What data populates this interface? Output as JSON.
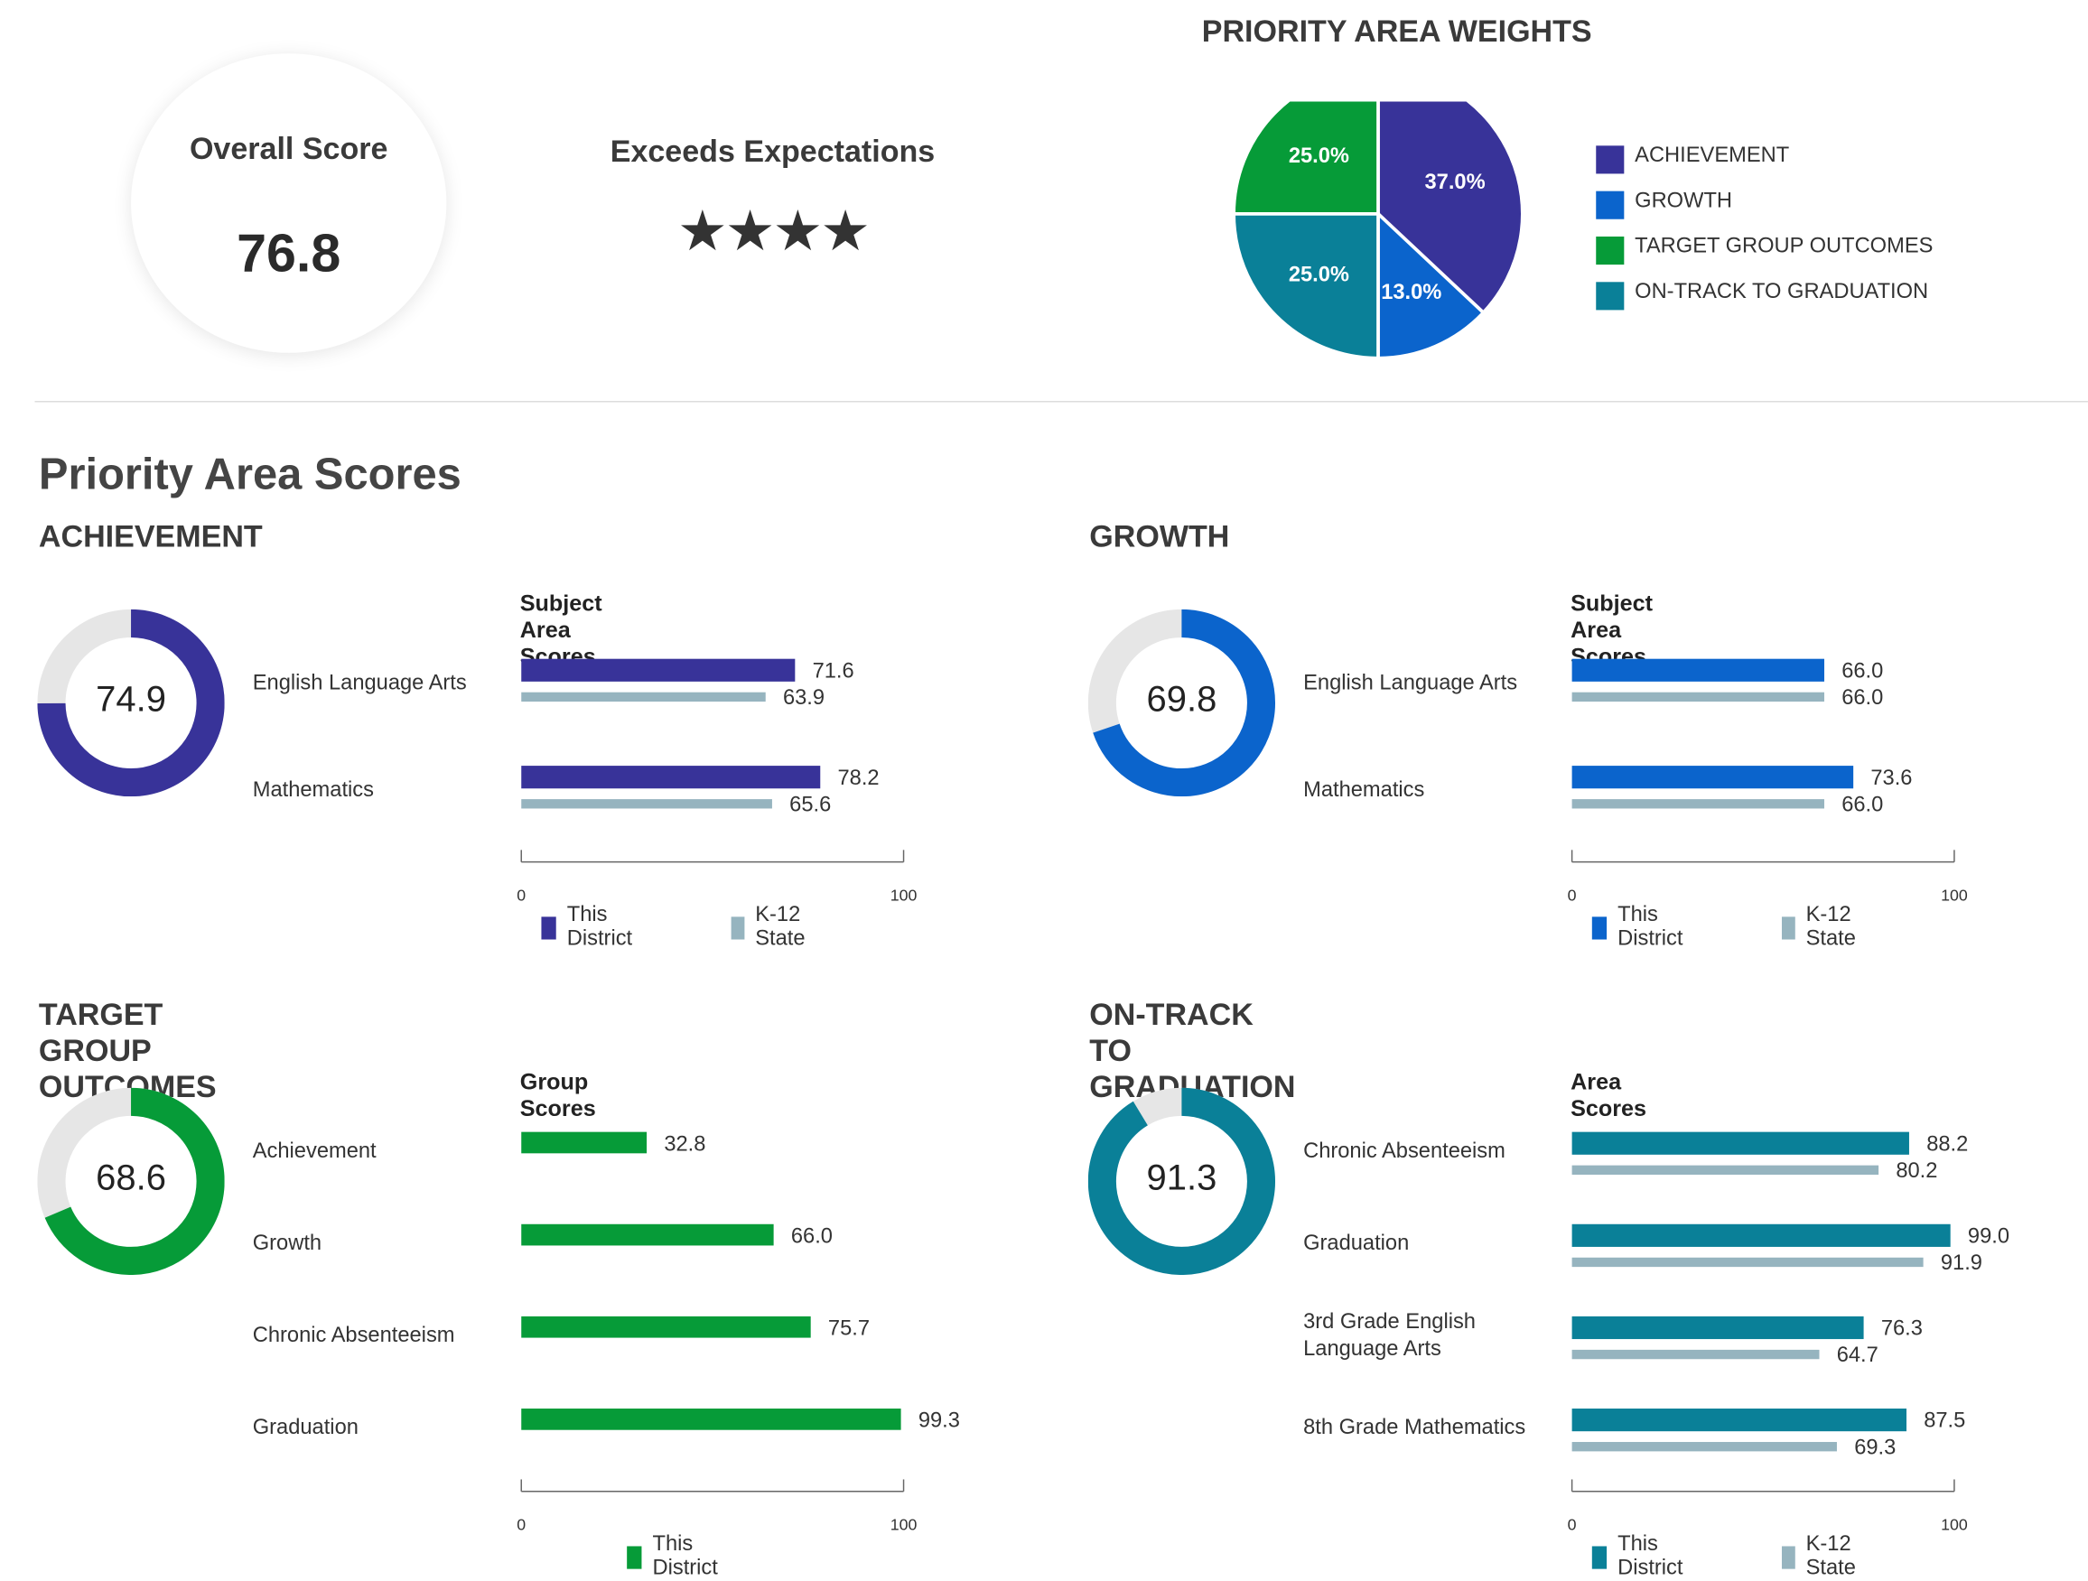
{
  "overall": {
    "title": "Overall Score",
    "value": "76.8"
  },
  "rating": {
    "label": "Exceeds Expectations",
    "stars": "★★★★"
  },
  "weights": {
    "title": "PRIORITY AREA WEIGHTS",
    "slices": [
      {
        "label": "ACHIEVEMENT",
        "value": 37.0,
        "color": "#383399",
        "display": "37.0%"
      },
      {
        "label": "GROWTH",
        "value": 13.0,
        "color": "#0b64cc",
        "display": "13.0%"
      },
      {
        "label": "ON-TRACK TO GRADUATION",
        "value": 25.0,
        "color": "#0a8098",
        "display": "25.0%"
      },
      {
        "label": "TARGET GROUP OUTCOMES",
        "value": 25.0,
        "color": "#069b38",
        "display": "25.0%"
      }
    ],
    "legend": [
      {
        "label": "ACHIEVEMENT",
        "color": "#383399"
      },
      {
        "label": "GROWTH",
        "color": "#0b64cc"
      },
      {
        "label": "TARGET GROUP OUTCOMES",
        "color": "#069b38"
      },
      {
        "label": "ON-TRACK TO GRADUATION",
        "color": "#0a8098"
      }
    ]
  },
  "section_title": "Priority Area Scores",
  "state_color": "#96b4bf",
  "axis": {
    "min": 0,
    "max": 100,
    "min_label": "0",
    "max_label": "100"
  },
  "panels": [
    {
      "title": "ACHIEVEMENT",
      "score": 74.9,
      "score_label": "74.9",
      "color": "#383399",
      "chart_title": "Subject Area Scores",
      "legend": [
        "This District",
        "K-12 State"
      ],
      "rows": [
        {
          "label": "English Language Arts",
          "district": 71.6,
          "district_label": "71.6",
          "state": 63.9,
          "state_label": "63.9"
        },
        {
          "label": "Mathematics",
          "district": 78.2,
          "district_label": "78.2",
          "state": 65.6,
          "state_label": "65.6"
        }
      ]
    },
    {
      "title": "GROWTH",
      "score": 69.8,
      "score_label": "69.8",
      "color": "#0b64cc",
      "chart_title": "Subject Area Scores",
      "legend": [
        "This District",
        "K-12 State"
      ],
      "rows": [
        {
          "label": "English Language Arts",
          "district": 66.0,
          "district_label": "66.0",
          "state": 66.0,
          "state_label": "66.0"
        },
        {
          "label": "Mathematics",
          "district": 73.6,
          "district_label": "73.6",
          "state": 66.0,
          "state_label": "66.0"
        }
      ]
    },
    {
      "title": "TARGET GROUP OUTCOMES",
      "score": 68.6,
      "score_label": "68.6",
      "color": "#069b38",
      "chart_title": "Group Scores",
      "legend": [
        "This District"
      ],
      "rows": [
        {
          "label": "Achievement",
          "district": 32.8,
          "district_label": "32.8"
        },
        {
          "label": "Growth",
          "district": 66.0,
          "district_label": "66.0"
        },
        {
          "label": "Chronic Absenteeism",
          "district": 75.7,
          "district_label": "75.7"
        },
        {
          "label": "Graduation",
          "district": 99.3,
          "district_label": "99.3"
        }
      ]
    },
    {
      "title": "ON-TRACK TO GRADUATION",
      "score": 91.3,
      "score_label": "91.3",
      "color": "#0a8098",
      "chart_title": "Area Scores",
      "legend": [
        "This District",
        "K-12 State"
      ],
      "rows": [
        {
          "label": "Chronic Absenteeism",
          "district": 88.2,
          "district_label": "88.2",
          "state": 80.2,
          "state_label": "80.2"
        },
        {
          "label": "Graduation",
          "district": 99.0,
          "district_label": "99.0",
          "state": 91.9,
          "state_label": "91.9"
        },
        {
          "label": "3rd Grade English Language Arts",
          "district": 76.3,
          "district_label": "76.3",
          "state": 64.7,
          "state_label": "64.7"
        },
        {
          "label": "8th Grade Mathematics",
          "district": 87.5,
          "district_label": "87.5",
          "state": 69.3,
          "state_label": "69.3"
        }
      ]
    }
  ],
  "chart_data": [
    {
      "type": "pie",
      "title": "PRIORITY AREA WEIGHTS",
      "categories": [
        "ACHIEVEMENT",
        "GROWTH",
        "TARGET GROUP OUTCOMES",
        "ON-TRACK TO GRADUATION"
      ],
      "values": [
        37.0,
        13.0,
        25.0,
        25.0
      ],
      "legend": "right"
    },
    {
      "type": "bar",
      "title": "Subject Area Scores",
      "categories": [
        "English Language Arts",
        "Mathematics"
      ],
      "series": [
        {
          "name": "This District",
          "values": [
            71.6,
            78.2
          ]
        },
        {
          "name": "K-12 State",
          "values": [
            63.9,
            65.6
          ]
        }
      ],
      "xlim": [
        0,
        100
      ]
    },
    {
      "type": "bar",
      "title": "Subject Area Scores",
      "categories": [
        "English Language Arts",
        "Mathematics"
      ],
      "series": [
        {
          "name": "This District",
          "values": [
            66.0,
            73.6
          ]
        },
        {
          "name": "K-12 State",
          "values": [
            66.0,
            66.0
          ]
        }
      ],
      "xlim": [
        0,
        100
      ]
    },
    {
      "type": "bar",
      "title": "Group Scores",
      "categories": [
        "Achievement",
        "Growth",
        "Chronic Absenteeism",
        "Graduation"
      ],
      "series": [
        {
          "name": "This District",
          "values": [
            32.8,
            66.0,
            75.7,
            99.3
          ]
        }
      ],
      "xlim": [
        0,
        100
      ]
    },
    {
      "type": "bar",
      "title": "Area Scores",
      "categories": [
        "Chronic Absenteeism",
        "Graduation",
        "3rd Grade English Language Arts",
        "8th Grade Mathematics"
      ],
      "series": [
        {
          "name": "This District",
          "values": [
            88.2,
            99.0,
            76.3,
            87.5
          ]
        },
        {
          "name": "K-12 State",
          "values": [
            80.2,
            91.9,
            64.7,
            69.3
          ]
        }
      ],
      "xlim": [
        0,
        100
      ]
    }
  ]
}
